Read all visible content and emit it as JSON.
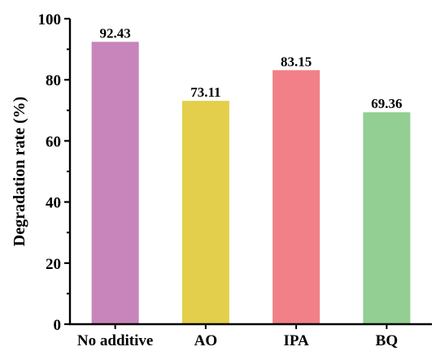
{
  "chart_data": {
    "type": "bar",
    "title": "",
    "xlabel": "",
    "ylabel": "Degradation rate (%)",
    "categories": [
      "No additive",
      "AO",
      "IPA",
      "BQ"
    ],
    "values": [
      92.43,
      73.11,
      83.15,
      69.36
    ],
    "value_labels": [
      "92.43",
      "73.11",
      "83.15",
      "69.36"
    ],
    "colors": [
      "#c785bb",
      "#e3cf4b",
      "#f28088",
      "#93cf93"
    ],
    "ylim": [
      0,
      100
    ],
    "yticks": [
      0,
      20,
      40,
      60,
      80,
      100
    ],
    "yticks_labels": [
      "0",
      "20",
      "40",
      "60",
      "80",
      "100"
    ],
    "grid": false,
    "legend": "none"
  }
}
